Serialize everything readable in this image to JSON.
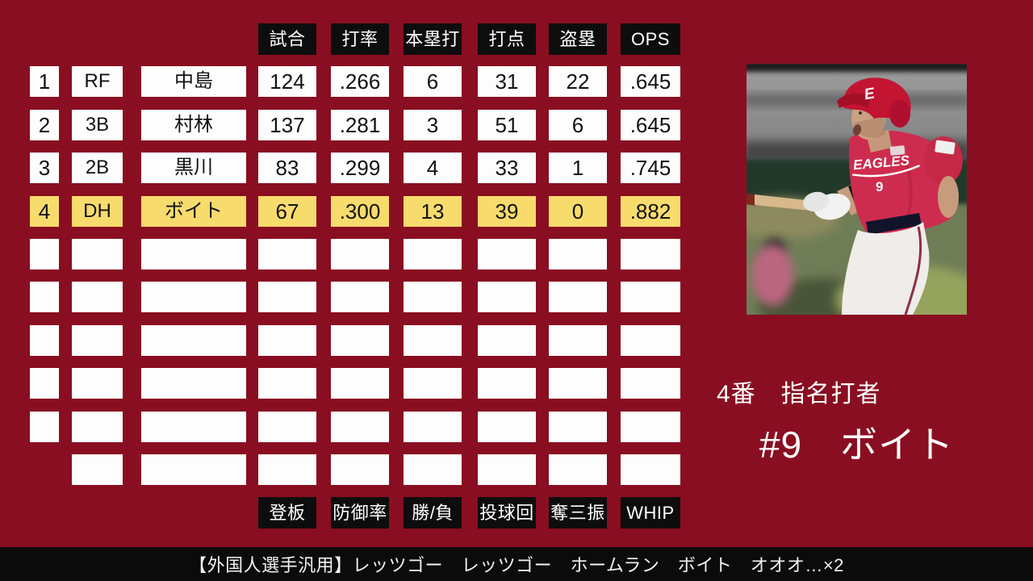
{
  "table": {
    "batting_headers": [
      "試合",
      "打率",
      "本塁打",
      "打点",
      "盗塁",
      "OPS"
    ],
    "pitching_headers": [
      "登板",
      "防御率",
      "勝/負",
      "投球回",
      "奪三振",
      "WHIP"
    ],
    "rows": [
      {
        "order": "1",
        "pos": "RF",
        "name": "中島",
        "stats": [
          "124",
          ".266",
          "6",
          "31",
          "22",
          ".645"
        ],
        "highlight": false,
        "has_order": true
      },
      {
        "order": "2",
        "pos": "3B",
        "name": "村林",
        "stats": [
          "137",
          ".281",
          "3",
          "51",
          "6",
          ".645"
        ],
        "highlight": false,
        "has_order": true
      },
      {
        "order": "3",
        "pos": "2B",
        "name": "黒川",
        "stats": [
          "83",
          ".299",
          "4",
          "33",
          "1",
          ".745"
        ],
        "highlight": false,
        "has_order": true
      },
      {
        "order": "4",
        "pos": "DH",
        "name": "ボイト",
        "stats": [
          "67",
          ".300",
          "13",
          "39",
          "0",
          ".882"
        ],
        "highlight": true,
        "has_order": true
      },
      {
        "order": "",
        "pos": "",
        "name": "",
        "stats": [
          "",
          "",
          "",
          "",
          "",
          ""
        ],
        "highlight": false,
        "has_order": true
      },
      {
        "order": "",
        "pos": "",
        "name": "",
        "stats": [
          "",
          "",
          "",
          "",
          "",
          ""
        ],
        "highlight": false,
        "has_order": true
      },
      {
        "order": "",
        "pos": "",
        "name": "",
        "stats": [
          "",
          "",
          "",
          "",
          "",
          ""
        ],
        "highlight": false,
        "has_order": true
      },
      {
        "order": "",
        "pos": "",
        "name": "",
        "stats": [
          "",
          "",
          "",
          "",
          "",
          ""
        ],
        "highlight": false,
        "has_order": true
      },
      {
        "order": "",
        "pos": "",
        "name": "",
        "stats": [
          "",
          "",
          "",
          "",
          "",
          ""
        ],
        "highlight": false,
        "has_order": true
      },
      {
        "order": "",
        "pos": "",
        "name": "",
        "stats": [
          "",
          "",
          "",
          "",
          "",
          ""
        ],
        "highlight": false,
        "has_order": false
      }
    ]
  },
  "player_panel": {
    "lineup_label": "4番　指名打者",
    "player_label": "#9　ボイト",
    "photo": {
      "jersey_text": "EAGLES",
      "jersey_number": "9",
      "helmet_letter": "E"
    }
  },
  "caption": {
    "text": "【外国人選手汎用】レッツゴー　レッツゴー　ホームラン　ボイト　オオオ…×2"
  },
  "colors": {
    "background": "#8a0e21",
    "box_black": "#0d0d0d",
    "box_white": "#fdfdfd",
    "highlight_yellow": "#f8db6d",
    "caption_bg": "#0b0b0b",
    "text_light": "#ffffff",
    "text_dark": "#111111",
    "jersey_crimson": "#ce2c4e"
  }
}
